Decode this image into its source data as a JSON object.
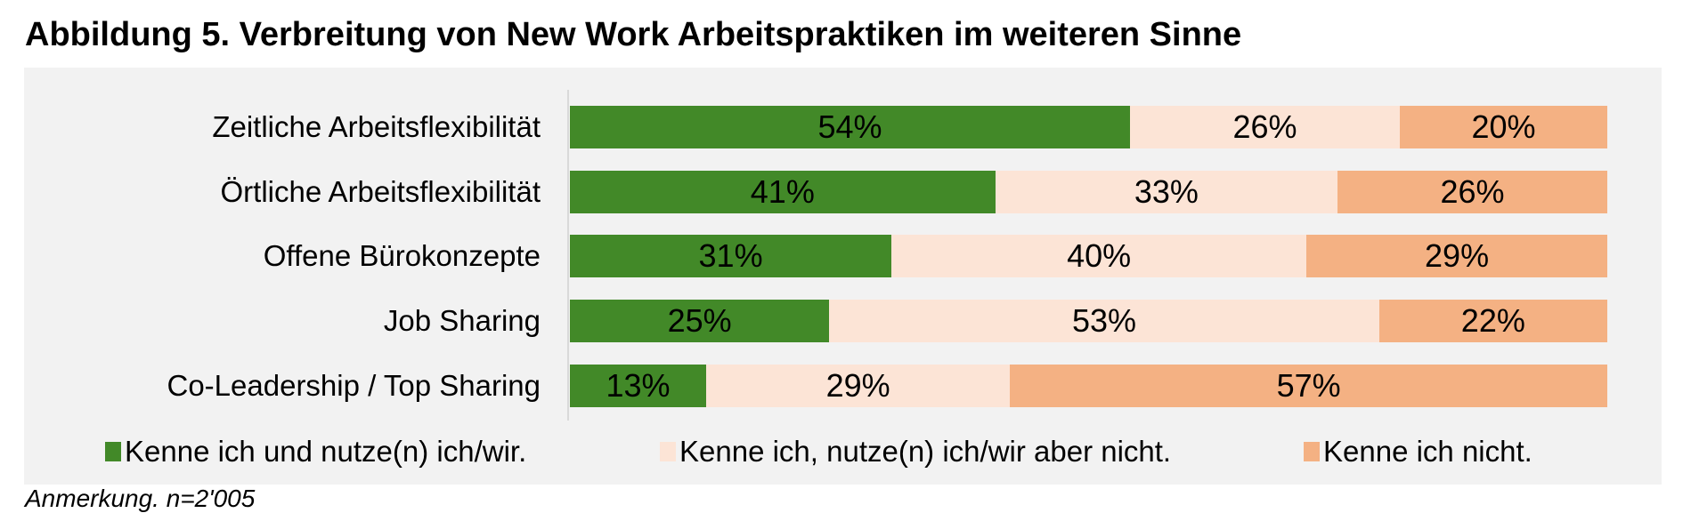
{
  "title": "Abbildung 5. Verbreitung von New Work Arbeitspraktiken im weiteren Sinne",
  "note": "Anmerkung. n=2'005",
  "colors": {
    "use": "#428928",
    "know_not_use": "#fce4d6",
    "not_know": "#f4b183",
    "panel": "#f2f2f2"
  },
  "legend": [
    {
      "label": "Kenne ich und nutze(n) ich/wir.",
      "color": "#428928"
    },
    {
      "label": "Kenne ich, nutze(n) ich/wir aber nicht.",
      "color": "#fce4d6"
    },
    {
      "label": "Kenne ich nicht.",
      "color": "#f4b183"
    }
  ],
  "rows": [
    {
      "label": "Zeitliche Arbeitsflexibilität",
      "values": [
        54,
        26,
        20
      ],
      "texts": [
        "54%",
        "26%",
        "20%"
      ]
    },
    {
      "label": "Örtliche Arbeitsflexibilität",
      "values": [
        41,
        33,
        26
      ],
      "texts": [
        "41%",
        "33%",
        "26%"
      ]
    },
    {
      "label": "Offene Bürokonzepte",
      "values": [
        31,
        40,
        29
      ],
      "texts": [
        "31%",
        "40%",
        "29%"
      ]
    },
    {
      "label": "Job Sharing",
      "values": [
        25,
        53,
        22
      ],
      "texts": [
        "25%",
        "53%",
        "22%"
      ]
    },
    {
      "label": "Co-Leadership / Top Sharing",
      "values": [
        13,
        29,
        57
      ],
      "texts": [
        "13%",
        "29%",
        "57%"
      ]
    }
  ],
  "chart_data": {
    "type": "bar",
    "orientation": "horizontal",
    "stacked": true,
    "normalized_percent": true,
    "title": "Abbildung 5. Verbreitung von New Work Arbeitspraktiken im weiteren Sinne",
    "xlabel": "",
    "ylabel": "",
    "categories": [
      "Zeitliche Arbeitsflexibilität",
      "Örtliche Arbeitsflexibilität",
      "Offene Bürokonzepte",
      "Job Sharing",
      "Co-Leadership / Top Sharing"
    ],
    "series": [
      {
        "name": "Kenne ich und nutze(n) ich/wir.",
        "color": "#428928",
        "values": [
          54,
          41,
          31,
          25,
          13
        ]
      },
      {
        "name": "Kenne ich, nutze(n) ich/wir aber nicht.",
        "color": "#fce4d6",
        "values": [
          26,
          33,
          40,
          53,
          29
        ]
      },
      {
        "name": "Kenne ich nicht.",
        "color": "#f4b183",
        "values": [
          20,
          26,
          29,
          22,
          57
        ]
      }
    ],
    "xlim": [
      0,
      100
    ],
    "grid": false,
    "data_labels": true,
    "legend_position": "bottom",
    "annotation": "Anmerkung. n=2'005"
  }
}
